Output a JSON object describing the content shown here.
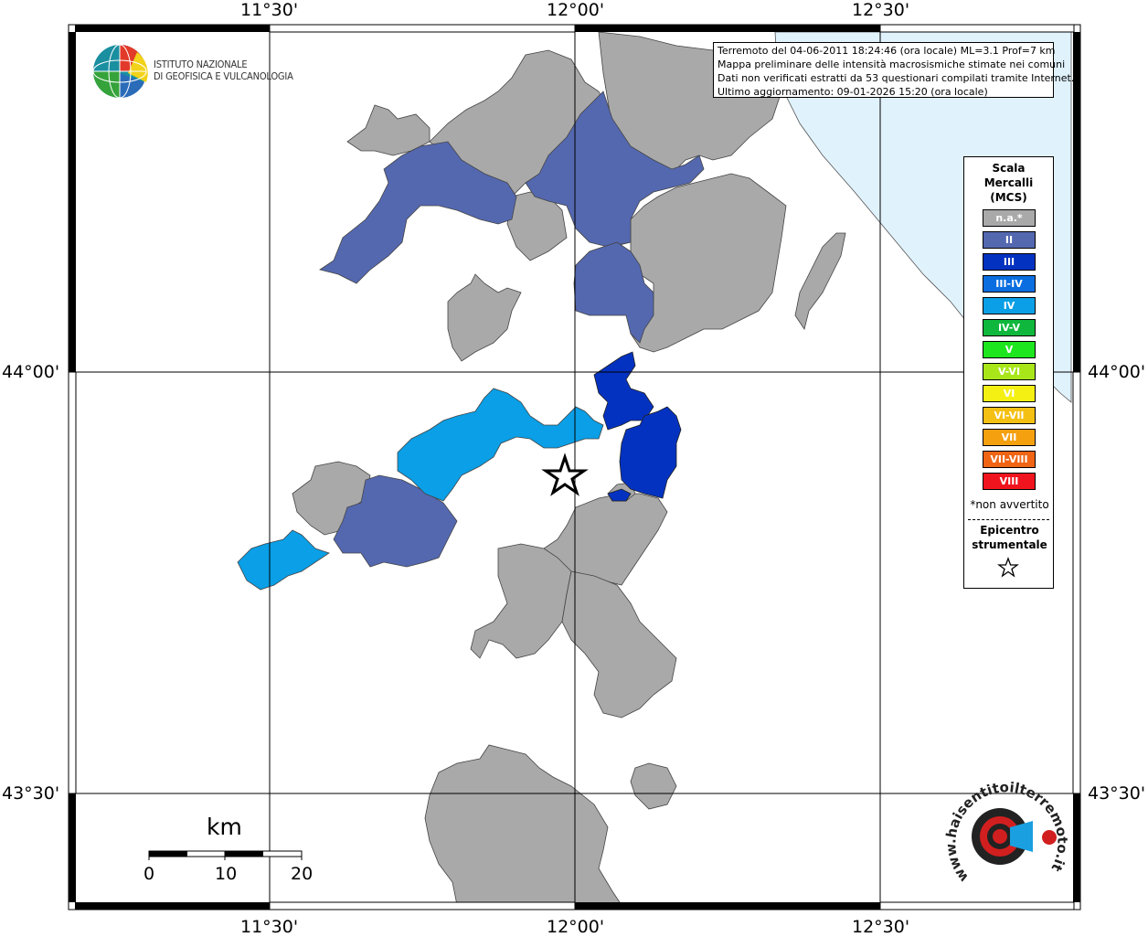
{
  "axes": {
    "top_labels": [
      "11°30'",
      "12°00'",
      "12°30'"
    ],
    "bottom_labels": [
      "11°30'",
      "12°00'",
      "12°30'"
    ],
    "left_labels": [
      "44°00'",
      "43°30'"
    ],
    "right_labels": [
      "44°00'",
      "43°30'"
    ]
  },
  "logo": {
    "line1": "ISTITUTO NAZIONALE",
    "line2": "DI GEOFISICA E VULCANOLOGIA"
  },
  "info": {
    "line1": "Terremoto del 04-06-2011 18:24:46 (ora locale) ML=3.1 Prof=7 km",
    "line2": "Mappa preliminare delle intensità macrosismiche stimate nei comuni",
    "line3": "Dati non verificati estratti da 53 questionari compilati tramite Internet.",
    "line4": "Ultimo aggiornamento: 09-01-2026 15:20 (ora locale)"
  },
  "legend": {
    "title_line1": "Scala",
    "title_line2": "Mercalli",
    "title_line3": "(MCS)",
    "items": [
      {
        "label": "n.a.*",
        "color": "#a9a9a9"
      },
      {
        "label": "II",
        "color": "#5468b0"
      },
      {
        "label": "III",
        "color": "#0432c0"
      },
      {
        "label": "III-IV",
        "color": "#0a6ee0"
      },
      {
        "label": "IV",
        "color": "#0a9fe6"
      },
      {
        "label": "IV-V",
        "color": "#0fb83c"
      },
      {
        "label": "V",
        "color": "#1ee61e"
      },
      {
        "label": "V-VI",
        "color": "#a8e61a"
      },
      {
        "label": "VI",
        "color": "#f5f014"
      },
      {
        "label": "VI-VII",
        "color": "#f5c014"
      },
      {
        "label": "VII",
        "color": "#f5a00f"
      },
      {
        "label": "VII-VIII",
        "color": "#f06414"
      },
      {
        "label": "VIII",
        "color": "#f0141e"
      }
    ],
    "note": "*non avvertito",
    "epicenter_line1": "Epicentro",
    "epicenter_line2": "strumentale"
  },
  "scale_bar": {
    "unit": "km",
    "ticks": [
      "0",
      "10",
      "20"
    ]
  },
  "hsit_logo": {
    "text": "www.haisentitoilterremoto.it"
  },
  "colors": {
    "sea": "#e0f2fc",
    "na": "#a9a9a9",
    "ii": "#5468b0",
    "iii": "#0432c0",
    "iv": "#0a9fe6"
  }
}
